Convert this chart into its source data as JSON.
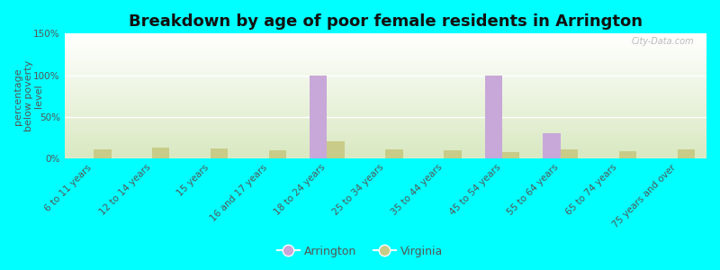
{
  "title": "Breakdown by age of poor female residents in Arrington",
  "ylabel": "percentage\nbelow poverty\nlevel",
  "categories": [
    "6 to 11 years",
    "12 to 14 years",
    "15 years",
    "16 and 17 years",
    "18 to 24 years",
    "25 to 34 years",
    "35 to 44 years",
    "45 to 54 years",
    "55 to 64 years",
    "65 to 74 years",
    "75 years and over"
  ],
  "arrington_values": [
    0,
    0,
    0,
    0,
    100,
    0,
    0,
    100,
    30,
    0,
    0
  ],
  "virginia_values": [
    11,
    13,
    12,
    10,
    21,
    11,
    10,
    8,
    11,
    9,
    11
  ],
  "arrington_color": "#c8a8d8",
  "virginia_color": "#c8cc88",
  "background_color": "#00ffff",
  "ylim": [
    0,
    150
  ],
  "yticks": [
    0,
    50,
    100,
    150
  ],
  "ytick_labels": [
    "0%",
    "50%",
    "100%",
    "150%"
  ],
  "bar_width": 0.3,
  "title_fontsize": 13,
  "axis_label_fontsize": 8,
  "tick_fontsize": 7.5,
  "legend_labels": [
    "Arrington",
    "Virginia"
  ],
  "legend_fontsize": 9,
  "watermark": "City-Data.com",
  "grid_color": "#ffffff",
  "text_color": "#555555",
  "title_color": "#111111"
}
